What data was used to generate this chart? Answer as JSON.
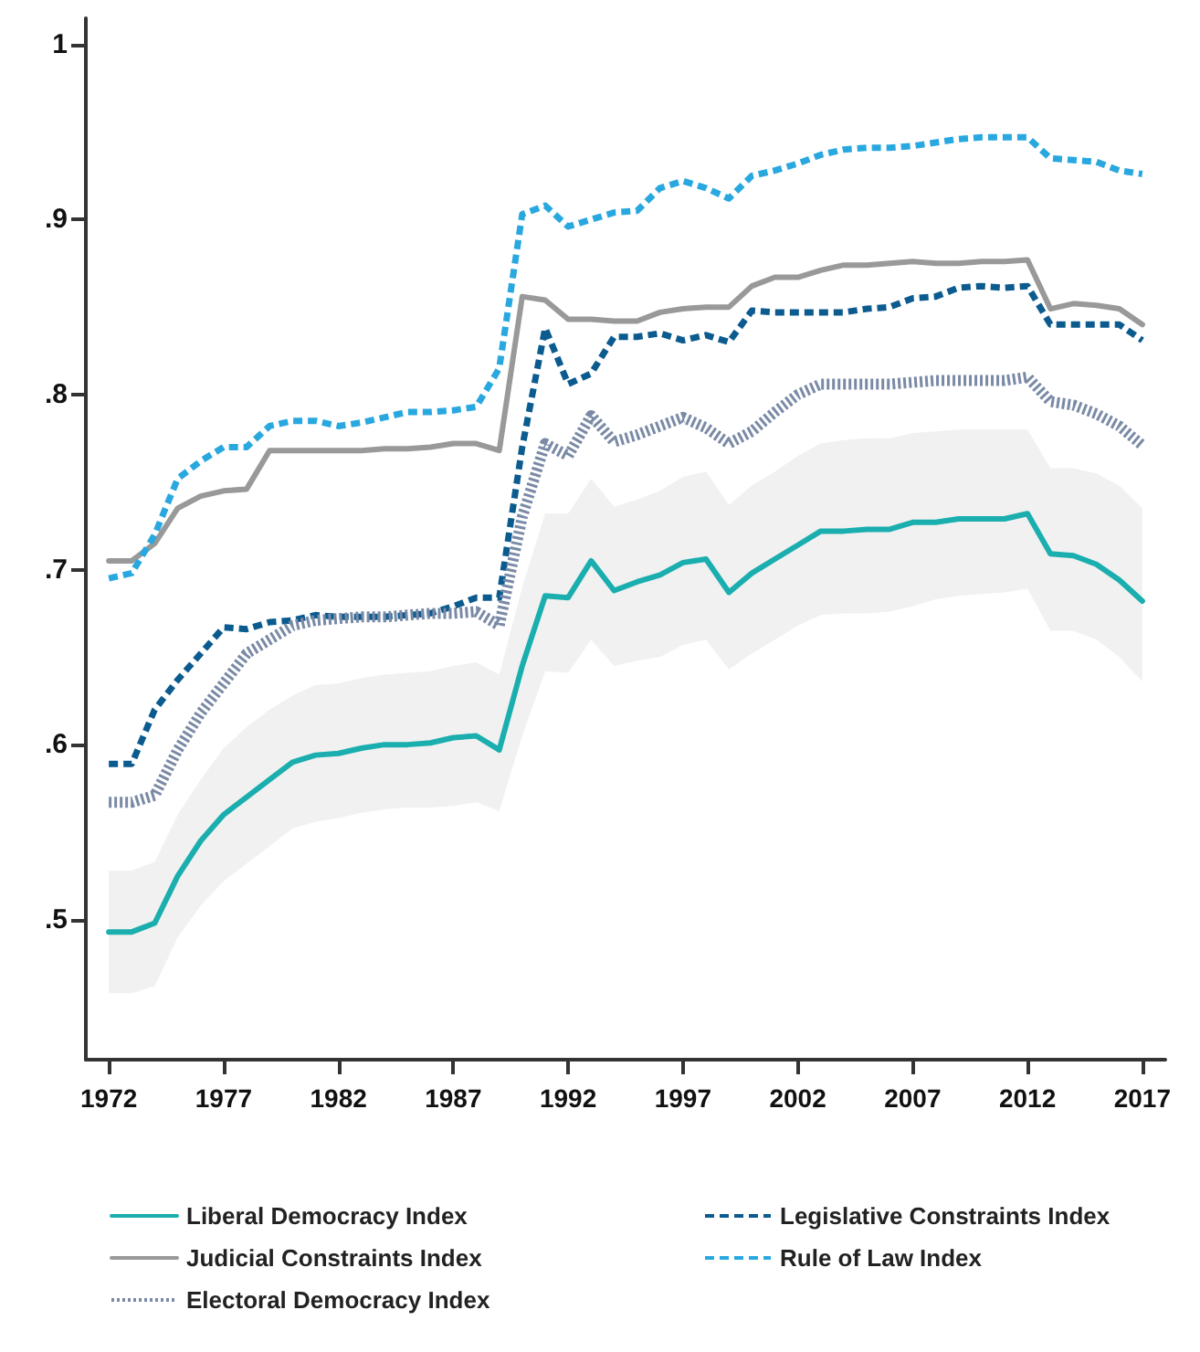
{
  "chart_data": {
    "type": "line",
    "x": [
      1972,
      1973,
      1974,
      1975,
      1976,
      1977,
      1978,
      1979,
      1980,
      1981,
      1982,
      1983,
      1984,
      1985,
      1986,
      1987,
      1988,
      1989,
      1990,
      1991,
      1992,
      1993,
      1994,
      1995,
      1996,
      1997,
      1998,
      1999,
      2000,
      2001,
      2002,
      2003,
      2004,
      2005,
      2006,
      2007,
      2008,
      2009,
      2010,
      2011,
      2012,
      2013,
      2014,
      2015,
      2016,
      2017
    ],
    "xlim": [
      1971,
      2018
    ],
    "xticks": [
      1972,
      1977,
      1982,
      1987,
      1992,
      1997,
      2002,
      2007,
      2012,
      2017
    ],
    "ylim": [
      0.42,
      1.015
    ],
    "yticks": [
      {
        "value": 0.5,
        "label": ".5"
      },
      {
        "value": 0.6,
        "label": ".6"
      },
      {
        "value": 0.7,
        "label": ".7"
      },
      {
        "value": 0.8,
        "label": ".8"
      },
      {
        "value": 0.9,
        "label": ".9"
      },
      1
    ],
    "grid": false,
    "legend": "bottom",
    "marker": "none",
    "series": [
      {
        "name": "Liberal Democracy Index",
        "color": "#1aaeae",
        "line_style": "solid",
        "values": [
          0.493,
          0.493,
          0.498,
          0.525,
          0.545,
          0.56,
          0.57,
          0.58,
          0.59,
          0.594,
          0.595,
          0.598,
          0.6,
          0.6,
          0.601,
          0.604,
          0.605,
          0.597,
          0.645,
          0.685,
          0.684,
          0.705,
          0.688,
          0.693,
          0.697,
          0.704,
          0.706,
          0.687,
          0.698,
          0.706,
          0.714,
          0.722,
          0.722,
          0.723,
          0.723,
          0.727,
          0.727,
          0.729,
          0.729,
          0.729,
          0.732,
          0.709,
          0.708,
          0.703,
          0.694,
          0.682
        ],
        "upper": [
          0.528,
          0.528,
          0.533,
          0.56,
          0.58,
          0.598,
          0.61,
          0.62,
          0.628,
          0.634,
          0.635,
          0.638,
          0.64,
          0.641,
          0.642,
          0.645,
          0.647,
          0.64,
          0.69,
          0.732,
          0.732,
          0.752,
          0.736,
          0.74,
          0.745,
          0.753,
          0.756,
          0.737,
          0.748,
          0.756,
          0.765,
          0.772,
          0.774,
          0.775,
          0.775,
          0.778,
          0.779,
          0.78,
          0.78,
          0.78,
          0.78,
          0.758,
          0.758,
          0.755,
          0.748,
          0.735
        ],
        "lower": [
          0.458,
          0.458,
          0.462,
          0.49,
          0.508,
          0.522,
          0.532,
          0.542,
          0.552,
          0.556,
          0.558,
          0.561,
          0.563,
          0.564,
          0.564,
          0.565,
          0.567,
          0.562,
          0.605,
          0.642,
          0.641,
          0.66,
          0.645,
          0.648,
          0.65,
          0.657,
          0.66,
          0.643,
          0.652,
          0.66,
          0.668,
          0.674,
          0.675,
          0.675,
          0.676,
          0.679,
          0.683,
          0.685,
          0.686,
          0.687,
          0.689,
          0.665,
          0.665,
          0.66,
          0.65,
          0.636
        ]
      },
      {
        "name": "Legislative Constraints Index",
        "color": "#0b5b8f",
        "line_style": "dashed",
        "values": [
          0.589,
          0.589,
          0.62,
          0.637,
          0.652,
          0.667,
          0.666,
          0.67,
          0.671,
          0.674,
          0.673,
          0.673,
          0.673,
          0.674,
          0.675,
          0.679,
          0.684,
          0.684,
          0.77,
          0.838,
          0.806,
          0.812,
          0.833,
          0.833,
          0.835,
          0.831,
          0.834,
          0.83,
          0.848,
          0.847,
          0.847,
          0.847,
          0.847,
          0.849,
          0.85,
          0.855,
          0.856,
          0.861,
          0.862,
          0.861,
          0.862,
          0.84,
          0.84,
          0.84,
          0.84,
          0.831
        ]
      },
      {
        "name": "Judicial Constraints Index",
        "color": "#999999",
        "line_style": "solid",
        "values": [
          0.705,
          0.705,
          0.715,
          0.735,
          0.742,
          0.745,
          0.746,
          0.768,
          0.768,
          0.768,
          0.768,
          0.768,
          0.769,
          0.769,
          0.77,
          0.772,
          0.772,
          0.768,
          0.856,
          0.854,
          0.843,
          0.843,
          0.842,
          0.842,
          0.847,
          0.849,
          0.85,
          0.85,
          0.862,
          0.867,
          0.867,
          0.871,
          0.874,
          0.874,
          0.875,
          0.876,
          0.875,
          0.875,
          0.876,
          0.876,
          0.877,
          0.849,
          0.852,
          0.851,
          0.849,
          0.84
        ]
      },
      {
        "name": "Rule of Law Index",
        "color": "#29a8e0",
        "line_style": "dashed",
        "values": [
          0.695,
          0.698,
          0.72,
          0.752,
          0.762,
          0.77,
          0.77,
          0.782,
          0.785,
          0.785,
          0.782,
          0.784,
          0.787,
          0.79,
          0.79,
          0.791,
          0.793,
          0.815,
          0.903,
          0.908,
          0.896,
          0.9,
          0.904,
          0.905,
          0.918,
          0.922,
          0.918,
          0.912,
          0.925,
          0.928,
          0.932,
          0.937,
          0.94,
          0.941,
          0.941,
          0.942,
          0.944,
          0.946,
          0.947,
          0.947,
          0.947,
          0.935,
          0.934,
          0.933,
          0.928,
          0.926
        ]
      },
      {
        "name": "Electoral Democracy Index",
        "color": "#7a8aa6",
        "line_style": "dotted",
        "values": [
          0.567,
          0.567,
          0.571,
          0.597,
          0.618,
          0.635,
          0.652,
          0.66,
          0.668,
          0.671,
          0.672,
          0.673,
          0.673,
          0.674,
          0.675,
          0.675,
          0.676,
          0.668,
          0.73,
          0.772,
          0.765,
          0.788,
          0.773,
          0.777,
          0.782,
          0.787,
          0.781,
          0.772,
          0.779,
          0.79,
          0.8,
          0.806,
          0.806,
          0.806,
          0.806,
          0.807,
          0.808,
          0.808,
          0.808,
          0.808,
          0.81,
          0.796,
          0.794,
          0.789,
          0.782,
          0.771
        ]
      }
    ]
  }
}
